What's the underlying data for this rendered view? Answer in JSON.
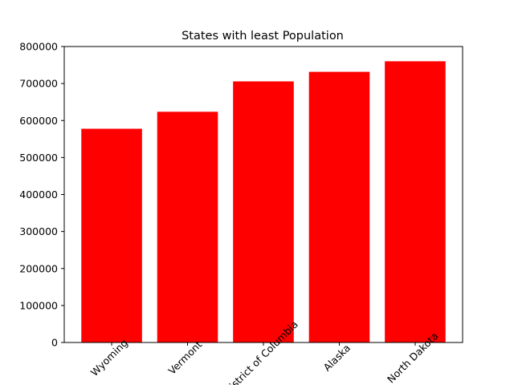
{
  "chart_data": {
    "type": "bar",
    "title": "States with least Population",
    "xlabel": "",
    "ylabel": "",
    "categories": [
      "Wyoming",
      "Vermont",
      "District of Columbia",
      "Alaska",
      "North Dakota"
    ],
    "values": [
      577737,
      623657,
      705749,
      731545,
      760077
    ],
    "ylim": [
      0,
      800000
    ],
    "yticks": [
      "0",
      "100000",
      "200000",
      "300000",
      "400000",
      "500000",
      "600000",
      "700000",
      "800000"
    ],
    "bar_color": "#ff0000",
    "grid": false,
    "legend": "none",
    "x_tick_rotation_deg": 45
  }
}
